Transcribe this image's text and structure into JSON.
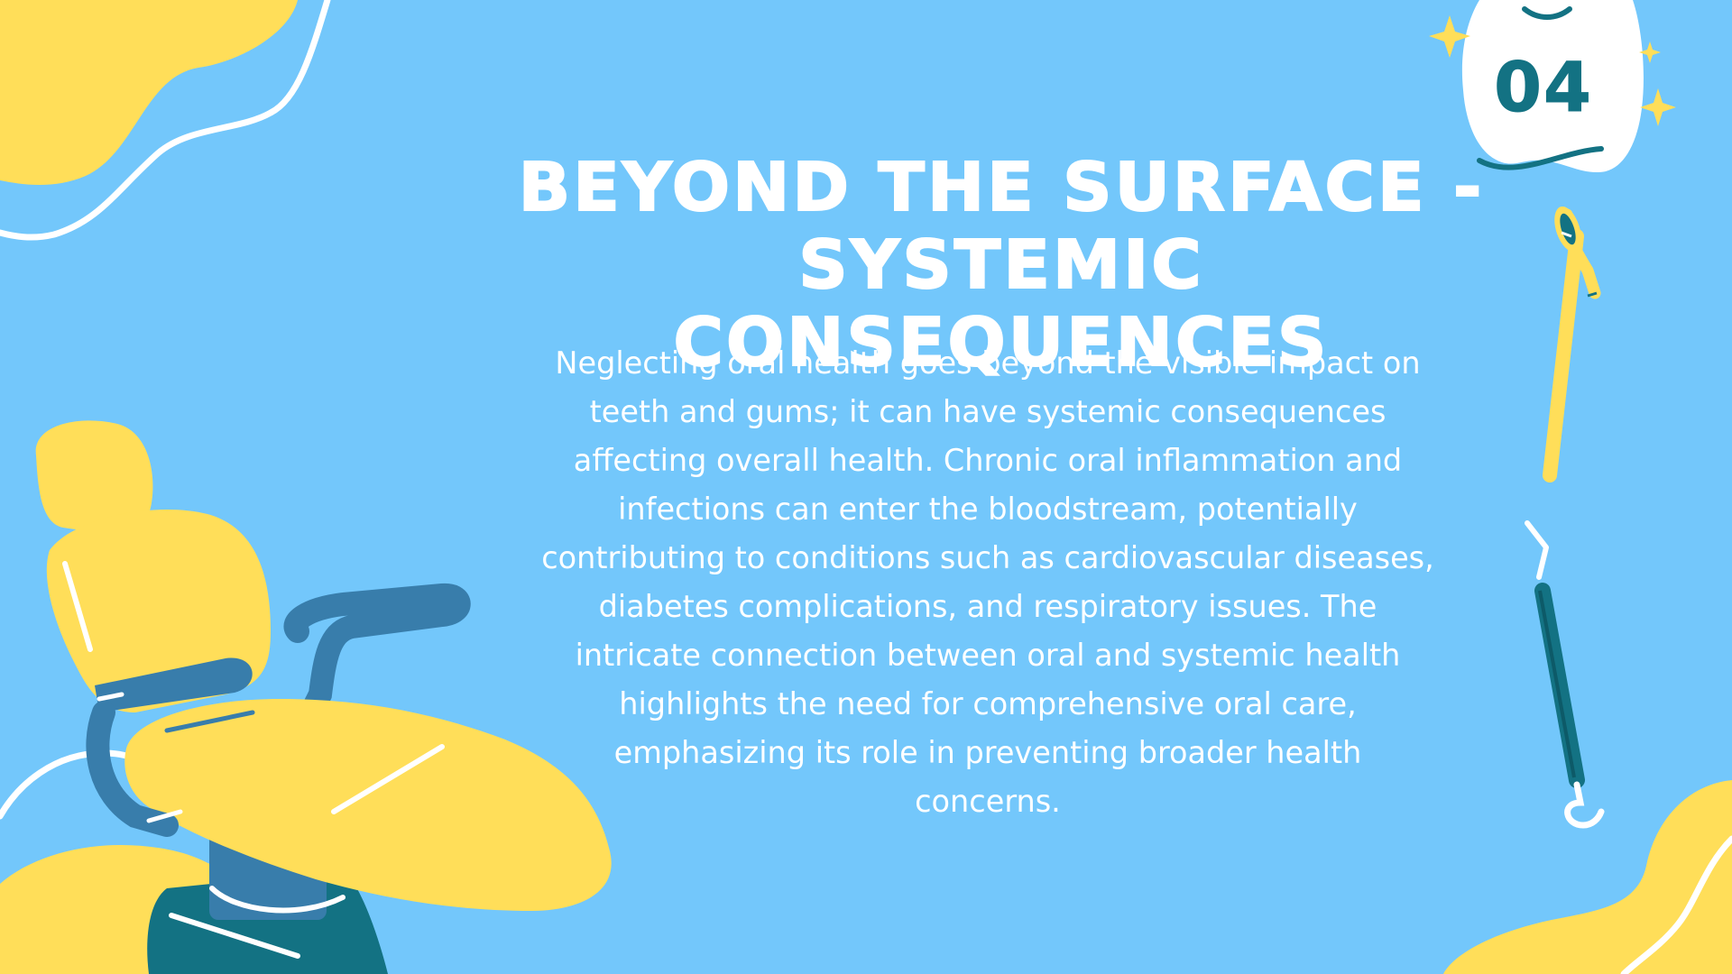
{
  "slide": {
    "title_line1": "Beyond the Surface -",
    "title_line2": "Systemic Consequences",
    "body": "Neglecting oral health goes beyond the visible impact on teeth and gums; it can have systemic consequences affecting overall health. Chronic oral inflammation and infections can enter the bloodstream, potentially contributing to conditions such as cardiovascular diseases, diabetes complications, and respiratory issues. The intricate connection between oral and systemic health highlights the need for comprehensive oral care, emphasizing its role in preventing broader health concerns.",
    "slide_number": "04"
  },
  "colors": {
    "background": "#73c7fb",
    "yellow": "#ffde59",
    "teal": "#137283",
    "steel_blue": "#387dab",
    "white": "#ffffff"
  },
  "icons": [
    "tooth-icon",
    "sparkle-icon",
    "dental-mirror-icon",
    "dental-explorer-icon",
    "dental-chair-icon"
  ]
}
